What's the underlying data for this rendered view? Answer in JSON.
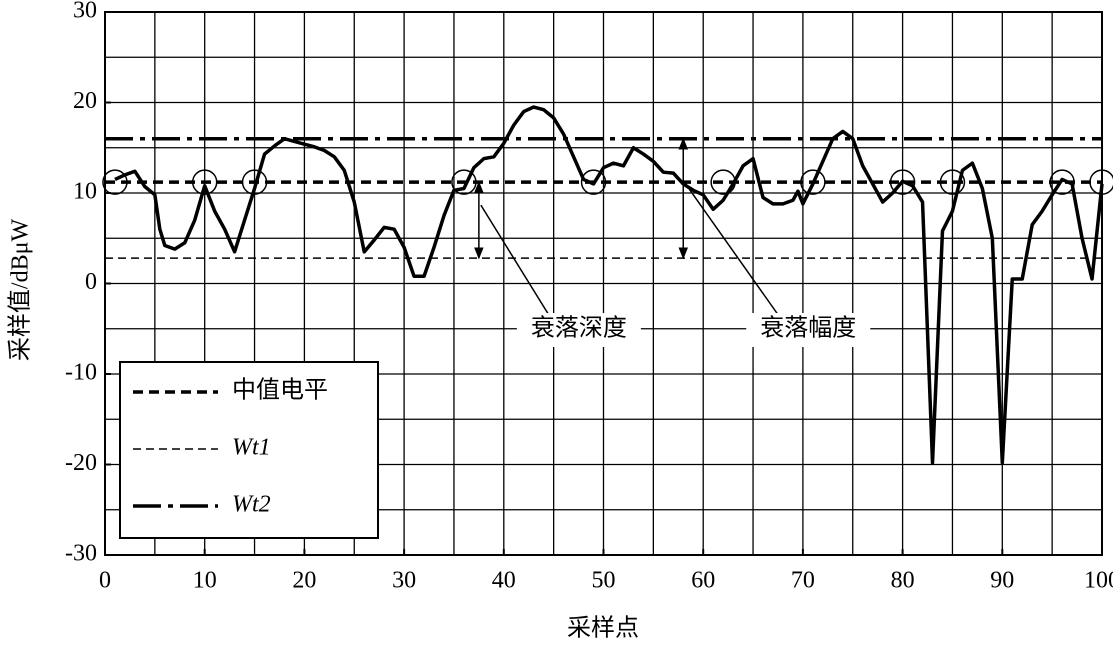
{
  "chart_data": {
    "type": "line",
    "x_label": "采样点",
    "y_label": "采样值/dBμW",
    "xlim": [
      0,
      100
    ],
    "ylim": [
      -30,
      30
    ],
    "xticks": [
      0,
      10,
      20,
      30,
      40,
      50,
      60,
      70,
      80,
      90,
      100
    ],
    "yticks": [
      -30,
      -20,
      -10,
      0,
      10,
      20,
      30
    ],
    "xgrid": [
      0,
      5,
      10,
      15,
      20,
      25,
      30,
      35,
      40,
      45,
      50,
      55,
      60,
      65,
      70,
      75,
      80,
      85,
      90,
      95,
      100
    ],
    "ygrid": [
      -30,
      -25,
      -20,
      -15,
      -10,
      -5,
      0,
      5,
      10,
      15,
      20,
      25,
      30
    ],
    "x": [
      1,
      2,
      3,
      4,
      5,
      5.5,
      6,
      7,
      8,
      9,
      10,
      11,
      12,
      13,
      14,
      15,
      16,
      17,
      18,
      19,
      20,
      21,
      22,
      23,
      24,
      25,
      26,
      27,
      28,
      29,
      30,
      31,
      32,
      33,
      34,
      35,
      36,
      37,
      38,
      39,
      40,
      41,
      42,
      43,
      44,
      45,
      46,
      47,
      48,
      49,
      50,
      51,
      52,
      53,
      54,
      55,
      56,
      57,
      58,
      59,
      60,
      61,
      62,
      63,
      64,
      65,
      66,
      67,
      68,
      69,
      69.5,
      70,
      71,
      72,
      73,
      74,
      75,
      76,
      77,
      78,
      79,
      80,
      81,
      82,
      83,
      84,
      85,
      86,
      87,
      88,
      89,
      90,
      91,
      92,
      93,
      94,
      95,
      96,
      97,
      98,
      99,
      100
    ],
    "series": [
      {
        "color": "#000000",
        "values": [
          11.5,
          12,
          12.4,
          10.7,
          9.8,
          6,
          4.2,
          3.8,
          4.5,
          7,
          10.8,
          8,
          6,
          3.5,
          7,
          10.5,
          14.3,
          15.2,
          16,
          15.7,
          15.4,
          15.1,
          14.7,
          14,
          12.5,
          9,
          3.5,
          4.8,
          6.2,
          6,
          4,
          0.8,
          0.8,
          4,
          7.5,
          10.3,
          10.5,
          12.8,
          13.8,
          14,
          15.5,
          17.5,
          19,
          19.5,
          19.2,
          18.3,
          16.5,
          14,
          11.5,
          11,
          12.8,
          13.3,
          13,
          15,
          14.3,
          13.5,
          12.3,
          12.2,
          11,
          10.3,
          9.8,
          8.2,
          9.2,
          11,
          13,
          13.8,
          9.5,
          8.8,
          8.8,
          9.2,
          10.2,
          8.8,
          11,
          13.5,
          16,
          16.8,
          16,
          13,
          11,
          9,
          10,
          11.3,
          10.8,
          9,
          -19.8,
          5.8,
          8,
          12.5,
          13.3,
          10.5,
          5,
          -19.8,
          0.5,
          0.5,
          6.5,
          8,
          9.8,
          11.5,
          11,
          5,
          0.5,
          11
        ]
      }
    ],
    "reference_lines": [
      {
        "name": "中值电平",
        "y": 11.2,
        "style": "dashed-bold"
      },
      {
        "name": "Wt1",
        "y": 2.8,
        "style": "dashed-thin"
      },
      {
        "name": "Wt2",
        "y": 16,
        "style": "dashdot"
      }
    ],
    "crossings": [
      1,
      10,
      15,
      36,
      49,
      62,
      71,
      80,
      85,
      96,
      100
    ],
    "annotations": [
      {
        "text": "衰落深度",
        "x": 37.5,
        "y": [
          11.2,
          2.8
        ]
      },
      {
        "text": "衰落幅度",
        "x": 58,
        "y": [
          16,
          2.8
        ]
      }
    ],
    "legend": "lower left"
  }
}
